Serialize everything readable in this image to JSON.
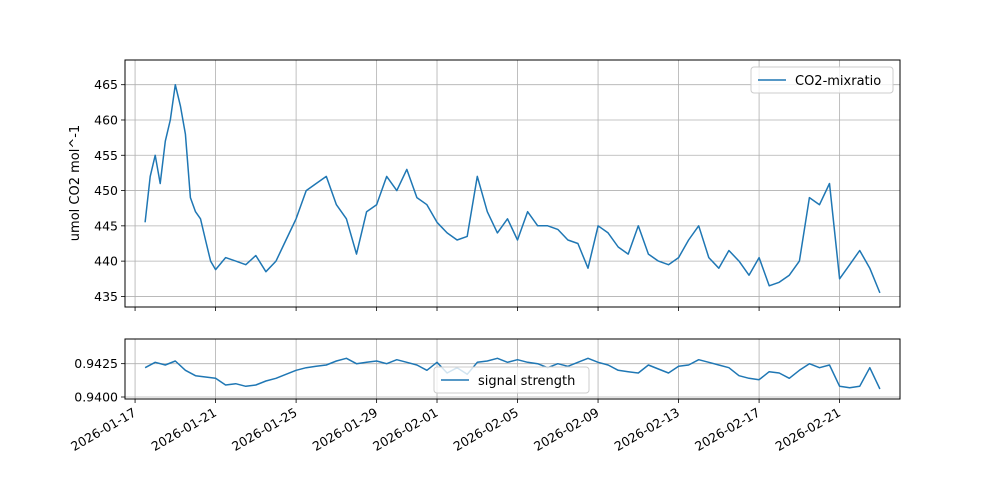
{
  "chart_data": [
    {
      "type": "line",
      "xlabel": "",
      "ylabel": "umol CO2 mol^-1",
      "ylim": [
        433.5,
        468.5
      ],
      "yticks": [
        435,
        440,
        445,
        450,
        455,
        460,
        465
      ],
      "xlim": [
        "2026-01-16T12:00",
        "2026-02-24T00:00"
      ],
      "grid": true,
      "legend_position": "top-right",
      "colors": {
        "line": "#1f77b4",
        "grid": "#b0b0b0"
      },
      "series": [
        {
          "name": "CO2-mixratio",
          "x": [
            "2026-01-17T12:00",
            "2026-01-17T18:00",
            "2026-01-18T00:00",
            "2026-01-18T06:00",
            "2026-01-18T12:00",
            "2026-01-18T18:00",
            "2026-01-19T00:00",
            "2026-01-19T06:00",
            "2026-01-19T12:00",
            "2026-01-19T18:00",
            "2026-01-20T00:00",
            "2026-01-20T06:00",
            "2026-01-20T12:00",
            "2026-01-20T18:00",
            "2026-01-21T00:00",
            "2026-01-21T12:00",
            "2026-01-22T00:00",
            "2026-01-22T12:00",
            "2026-01-23T00:00",
            "2026-01-23T12:00",
            "2026-01-24T00:00",
            "2026-01-24T12:00",
            "2026-01-25T00:00",
            "2026-01-25T12:00",
            "2026-01-26T00:00",
            "2026-01-26T12:00",
            "2026-01-27T00:00",
            "2026-01-27T12:00",
            "2026-01-28T00:00",
            "2026-01-28T12:00",
            "2026-01-29T00:00",
            "2026-01-29T12:00",
            "2026-01-30T00:00",
            "2026-01-30T12:00",
            "2026-01-31T00:00",
            "2026-01-31T12:00",
            "2026-02-01T00:00",
            "2026-02-01T12:00",
            "2026-02-02T00:00",
            "2026-02-02T12:00",
            "2026-02-03T00:00",
            "2026-02-03T12:00",
            "2026-02-04T00:00",
            "2026-02-04T12:00",
            "2026-02-05T00:00",
            "2026-02-05T12:00",
            "2026-02-06T00:00",
            "2026-02-06T12:00",
            "2026-02-07T00:00",
            "2026-02-07T12:00",
            "2026-02-08T00:00",
            "2026-02-08T12:00",
            "2026-02-09T00:00",
            "2026-02-09T12:00",
            "2026-02-10T00:00",
            "2026-02-10T12:00",
            "2026-02-11T00:00",
            "2026-02-11T12:00",
            "2026-02-12T00:00",
            "2026-02-12T12:00",
            "2026-02-13T00:00",
            "2026-02-13T12:00",
            "2026-02-14T00:00",
            "2026-02-14T12:00",
            "2026-02-15T00:00",
            "2026-02-15T12:00",
            "2026-02-16T00:00",
            "2026-02-16T12:00",
            "2026-02-17T00:00",
            "2026-02-17T12:00",
            "2026-02-18T00:00",
            "2026-02-18T12:00",
            "2026-02-19T00:00",
            "2026-02-19T12:00",
            "2026-02-20T00:00",
            "2026-02-20T12:00",
            "2026-02-21T00:00",
            "2026-02-21T12:00",
            "2026-02-22T00:00",
            "2026-02-22T12:00",
            "2026-02-23T00:00"
          ],
          "values": [
            445.5,
            452.0,
            455.0,
            451.0,
            457.0,
            460.0,
            465.0,
            462.0,
            458.0,
            449.0,
            447.0,
            446.0,
            443.0,
            440.0,
            438.8,
            440.5,
            440.0,
            439.5,
            440.8,
            438.5,
            440.0,
            443.0,
            446.0,
            450.0,
            451.0,
            452.0,
            448.0,
            446.0,
            441.0,
            447.0,
            448.0,
            452.0,
            450.0,
            453.0,
            449.0,
            448.0,
            445.5,
            444.0,
            443.0,
            443.5,
            452.0,
            447.0,
            444.0,
            446.0,
            443.0,
            447.0,
            445.0,
            445.0,
            444.5,
            443.0,
            442.5,
            439.0,
            445.0,
            444.0,
            442.0,
            441.0,
            445.0,
            441.0,
            440.0,
            439.5,
            440.5,
            443.0,
            445.0,
            440.5,
            439.0,
            441.5,
            440.0,
            438.0,
            440.5,
            436.5,
            437.0,
            438.0,
            440.0,
            449.0,
            448.0,
            451.0,
            437.5,
            439.5,
            441.5,
            439.0,
            435.5
          ]
        }
      ]
    },
    {
      "type": "line",
      "xlabel": "",
      "ylabel": "",
      "ylim": [
        0.93985,
        0.94435
      ],
      "yticks": [
        0.94,
        0.9425
      ],
      "ytick_labels": [
        "0.9400",
        "0.9425"
      ],
      "xlim": [
        "2026-01-16T12:00",
        "2026-02-24T00:00"
      ],
      "xticks": [
        "2026-01-17",
        "2026-01-21",
        "2026-01-25",
        "2026-01-29",
        "2026-02-01",
        "2026-02-05",
        "2026-02-09",
        "2026-02-13",
        "2026-02-17",
        "2026-02-21"
      ],
      "grid": true,
      "legend_position": "lower center",
      "colors": {
        "line": "#1f77b4",
        "grid": "#b0b0b0"
      },
      "series": [
        {
          "name": "signal strength",
          "x": [
            "2026-01-17T12:00",
            "2026-01-18T00:00",
            "2026-01-18T12:00",
            "2026-01-19T00:00",
            "2026-01-19T12:00",
            "2026-01-20T00:00",
            "2026-01-20T12:00",
            "2026-01-21T00:00",
            "2026-01-21T12:00",
            "2026-01-22T00:00",
            "2026-01-22T12:00",
            "2026-01-23T00:00",
            "2026-01-23T12:00",
            "2026-01-24T00:00",
            "2026-01-24T12:00",
            "2026-01-25T00:00",
            "2026-01-25T12:00",
            "2026-01-26T00:00",
            "2026-01-26T12:00",
            "2026-01-27T00:00",
            "2026-01-27T12:00",
            "2026-01-28T00:00",
            "2026-01-28T12:00",
            "2026-01-29T00:00",
            "2026-01-29T12:00",
            "2026-01-30T00:00",
            "2026-01-30T12:00",
            "2026-01-31T00:00",
            "2026-01-31T12:00",
            "2026-02-01T00:00",
            "2026-02-01T12:00",
            "2026-02-02T00:00",
            "2026-02-02T12:00",
            "2026-02-03T00:00",
            "2026-02-03T12:00",
            "2026-02-04T00:00",
            "2026-02-04T12:00",
            "2026-02-05T00:00",
            "2026-02-05T12:00",
            "2026-02-06T00:00",
            "2026-02-06T12:00",
            "2026-02-07T00:00",
            "2026-02-07T12:00",
            "2026-02-08T00:00",
            "2026-02-08T12:00",
            "2026-02-09T00:00",
            "2026-02-09T12:00",
            "2026-02-10T00:00",
            "2026-02-10T12:00",
            "2026-02-11T00:00",
            "2026-02-11T12:00",
            "2026-02-12T00:00",
            "2026-02-12T12:00",
            "2026-02-13T00:00",
            "2026-02-13T12:00",
            "2026-02-14T00:00",
            "2026-02-14T12:00",
            "2026-02-15T00:00",
            "2026-02-15T12:00",
            "2026-02-16T00:00",
            "2026-02-16T12:00",
            "2026-02-17T00:00",
            "2026-02-17T12:00",
            "2026-02-18T00:00",
            "2026-02-18T12:00",
            "2026-02-19T00:00",
            "2026-02-19T12:00",
            "2026-02-20T00:00",
            "2026-02-20T12:00",
            "2026-02-21T00:00",
            "2026-02-21T12:00",
            "2026-02-22T00:00",
            "2026-02-22T12:00",
            "2026-02-23T00:00"
          ],
          "values": [
            0.9422,
            0.9426,
            0.9424,
            0.9427,
            0.942,
            0.9416,
            0.9415,
            0.9414,
            0.9409,
            0.941,
            0.9408,
            0.9409,
            0.9412,
            0.9414,
            0.9417,
            0.942,
            0.9422,
            0.9423,
            0.9424,
            0.9427,
            0.9429,
            0.9425,
            0.9426,
            0.9427,
            0.9425,
            0.9428,
            0.9426,
            0.9424,
            0.942,
            0.9426,
            0.9418,
            0.9422,
            0.9417,
            0.9426,
            0.9427,
            0.9429,
            0.9426,
            0.9428,
            0.9426,
            0.9425,
            0.9422,
            0.9425,
            0.9423,
            0.9426,
            0.9429,
            0.9426,
            0.9424,
            0.942,
            0.9419,
            0.9418,
            0.9424,
            0.9421,
            0.9418,
            0.9423,
            0.9424,
            0.9428,
            0.9426,
            0.9424,
            0.9422,
            0.9416,
            0.9414,
            0.9413,
            0.9419,
            0.9418,
            0.9414,
            0.942,
            0.9425,
            0.9422,
            0.9424,
            0.9408,
            0.9407,
            0.9408,
            0.9422,
            0.9406
          ]
        }
      ]
    }
  ]
}
